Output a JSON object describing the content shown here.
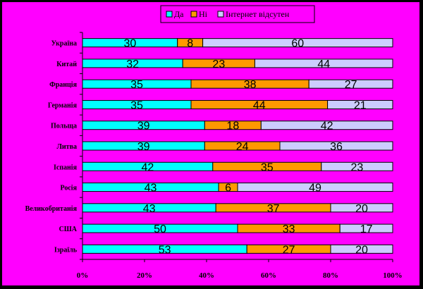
{
  "chart_data": {
    "type": "bar",
    "orientation": "horizontal",
    "stacked": "percent",
    "categories": [
      "Україна",
      "Китай",
      "Франція",
      "Германія",
      "Польща",
      "Литва",
      "Іспанія",
      "Росія",
      "Великобританія",
      "США",
      "Ізраїль"
    ],
    "series": [
      {
        "name": "Да",
        "color": "#00FFFF",
        "values": [
          30,
          32,
          35,
          35,
          39,
          39,
          42,
          43,
          43,
          50,
          53
        ]
      },
      {
        "name": "Ні",
        "color": "#FF9900",
        "values": [
          8,
          23,
          38,
          44,
          18,
          24,
          35,
          6,
          37,
          33,
          27
        ]
      },
      {
        "name": "Інтернет відсутен",
        "color": "#CCCCFF",
        "values": [
          60,
          44,
          27,
          21,
          42,
          36,
          23,
          49,
          20,
          17,
          20
        ]
      }
    ],
    "x_ticks": [
      "0%",
      "20%",
      "40%",
      "60%",
      "80%",
      "100%"
    ],
    "xlim": [
      0,
      100
    ],
    "legend_position": "top",
    "grid": false
  }
}
